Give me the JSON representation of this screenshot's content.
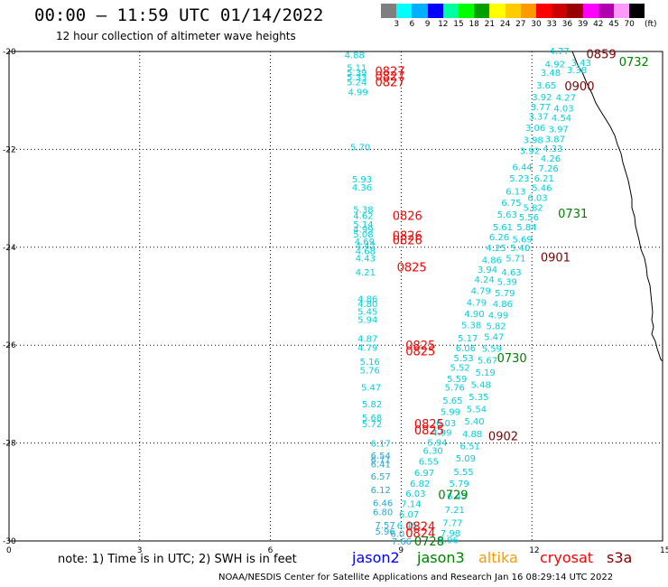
{
  "header": {
    "title": "00:00 – 11:59 UTC 01/14/2022",
    "subtitle": "12 hour collection of altimeter wave heights"
  },
  "colorbar": {
    "unit": "(ft)",
    "boxes": [
      "#7f7f7f",
      "#00ffff",
      "#00b0ff",
      "#0000ff",
      "#00ffa0",
      "#00ff00",
      "#00a000",
      "#ffff00",
      "#ffcc00",
      "#ff9900",
      "#ff0000",
      "#cc0000",
      "#990000",
      "#ff00ff",
      "#b000b0",
      "#ff99ff",
      "#000000"
    ],
    "labels": [
      "3",
      "6",
      "9",
      "12",
      "15",
      "18",
      "21",
      "24",
      "27",
      "30",
      "33",
      "36",
      "39",
      "42",
      "45",
      "70"
    ]
  },
  "axes": {
    "lat_labels": [
      "-20",
      "-22",
      "-24",
      "-26",
      "-28",
      "-30"
    ],
    "lon_labels": [
      "0",
      "3",
      "6",
      "9",
      "12",
      "15"
    ],
    "lat_range": [
      -30,
      -20
    ],
    "lon_range": [
      0,
      15
    ]
  },
  "colors": {
    "jason2": "#0000ff",
    "jason3": "#008000",
    "altika": "#ff9900",
    "cryosat": "#ff0000",
    "s3a": "#800000",
    "swh_cyan": "#00d0e0",
    "swh_blue": "#2aa8d8"
  },
  "legend": {
    "note": "note: 1) Time is in UTC; 2) SWH is in feet",
    "jason2": "jason2",
    "jason3": "jason3",
    "altika": "altika",
    "cryosat": "cryosat",
    "s3a": "s3a"
  },
  "credit": "NOAA/NESDIS Center for Satellite Applications and Research     Jan 16 08:29:14 UTC 2022",
  "tracks": {
    "west_values": [
      {
        "lat": -20.06,
        "lon": 7.7,
        "v": "4.88"
      },
      {
        "lat": -20.32,
        "lon": 7.75,
        "v": "5.11"
      },
      {
        "lat": -20.42,
        "lon": 7.75,
        "v": "5.39"
      },
      {
        "lat": -20.52,
        "lon": 7.75,
        "v": "5.33"
      },
      {
        "lat": -20.62,
        "lon": 7.75,
        "v": "5.24"
      },
      {
        "lat": -20.82,
        "lon": 7.78,
        "v": "4.99"
      },
      {
        "lat": -21.95,
        "lon": 7.83,
        "v": "5.70"
      },
      {
        "lat": -22.6,
        "lon": 7.87,
        "v": "5.93"
      },
      {
        "lat": -22.77,
        "lon": 7.87,
        "v": "4.36"
      },
      {
        "lat": -23.22,
        "lon": 7.9,
        "v": "5.38"
      },
      {
        "lat": -23.35,
        "lon": 7.9,
        "v": "4.62"
      },
      {
        "lat": -23.52,
        "lon": 7.9,
        "v": "5.14"
      },
      {
        "lat": -23.63,
        "lon": 7.9,
        "v": "4.99"
      },
      {
        "lat": -23.73,
        "lon": 7.9,
        "v": "5.08"
      },
      {
        "lat": -23.87,
        "lon": 7.93,
        "v": "4.69"
      },
      {
        "lat": -23.96,
        "lon": 7.95,
        "v": "4.42"
      },
      {
        "lat": -24.07,
        "lon": 7.95,
        "v": "4.68"
      },
      {
        "lat": -24.22,
        "lon": 7.95,
        "v": "4.43"
      },
      {
        "lat": -24.5,
        "lon": 7.95,
        "v": "4.21"
      },
      {
        "lat": -25.05,
        "lon": 8.0,
        "v": "4.86"
      },
      {
        "lat": -25.15,
        "lon": 8.0,
        "v": "4.80"
      },
      {
        "lat": -25.3,
        "lon": 8.0,
        "v": "5.45"
      },
      {
        "lat": -25.47,
        "lon": 8.0,
        "v": "5.94"
      },
      {
        "lat": -25.86,
        "lon": 8.0,
        "v": "4.87"
      },
      {
        "lat": -26.04,
        "lon": 8.0,
        "v": "4.79"
      },
      {
        "lat": -26.33,
        "lon": 8.05,
        "v": "5.16"
      },
      {
        "lat": -26.5,
        "lon": 8.05,
        "v": "5.76"
      },
      {
        "lat": -26.85,
        "lon": 8.08,
        "v": "5.47"
      },
      {
        "lat": -27.2,
        "lon": 8.1,
        "v": "5.82"
      },
      {
        "lat": -27.47,
        "lon": 8.1,
        "v": "5.68"
      },
      {
        "lat": -27.6,
        "lon": 8.1,
        "v": "5.72"
      },
      {
        "lat": -28.0,
        "lon": 8.3,
        "v": "6.17"
      }
    ],
    "blue_values": [
      {
        "lat": -28.25,
        "lon": 8.3,
        "v": "6.54"
      },
      {
        "lat": -28.33,
        "lon": 8.3,
        "v": "6.71"
      },
      {
        "lat": -28.42,
        "lon": 8.3,
        "v": "6.41"
      },
      {
        "lat": -28.67,
        "lon": 8.3,
        "v": "6.57"
      },
      {
        "lat": -28.95,
        "lon": 8.3,
        "v": "6.12"
      },
      {
        "lat": -29.22,
        "lon": 8.35,
        "v": "6.46"
      },
      {
        "lat": -29.4,
        "lon": 8.35,
        "v": "6.80"
      },
      {
        "lat": -29.67,
        "lon": 8.4,
        "v": "7.57"
      },
      {
        "lat": -29.8,
        "lon": 8.4,
        "v": "5.96"
      },
      {
        "lat": -29.84,
        "lon": 8.75,
        "v": "6.0"
      },
      {
        "lat": -30.0,
        "lon": 8.78,
        "v": "7.66"
      }
    ],
    "east_values": [
      {
        "lat": -19.98,
        "lon": 12.4,
        "v": "4.77"
      },
      {
        "lat": -20.25,
        "lon": 12.3,
        "v": "4.92"
      },
      {
        "lat": -20.42,
        "lon": 12.2,
        "v": "3.48"
      },
      {
        "lat": -20.68,
        "lon": 12.1,
        "v": "3.65"
      },
      {
        "lat": -20.92,
        "lon": 12.0,
        "v": "3.92"
      },
      {
        "lat": -21.13,
        "lon": 11.97,
        "v": "3.77"
      },
      {
        "lat": -21.32,
        "lon": 11.92,
        "v": "3.37"
      },
      {
        "lat": -21.55,
        "lon": 11.85,
        "v": "3.06"
      },
      {
        "lat": -21.8,
        "lon": 11.8,
        "v": "3.98"
      },
      {
        "lat": -22.02,
        "lon": 11.72,
        "v": "3.92"
      },
      {
        "lat": -22.35,
        "lon": 11.55,
        "v": "6.44"
      },
      {
        "lat": -22.58,
        "lon": 11.48,
        "v": "5.23"
      },
      {
        "lat": -22.85,
        "lon": 11.4,
        "v": "6.13"
      },
      {
        "lat": -23.08,
        "lon": 11.3,
        "v": "6.75"
      },
      {
        "lat": -23.32,
        "lon": 11.2,
        "v": "5.63"
      },
      {
        "lat": -23.58,
        "lon": 11.1,
        "v": "5.61"
      },
      {
        "lat": -23.78,
        "lon": 11.02,
        "v": "6.26"
      },
      {
        "lat": -24.0,
        "lon": 10.95,
        "v": "4.25"
      },
      {
        "lat": -24.25,
        "lon": 10.85,
        "v": "4.86"
      },
      {
        "lat": -24.45,
        "lon": 10.75,
        "v": "3.94"
      },
      {
        "lat": -24.65,
        "lon": 10.68,
        "v": "4.24"
      },
      {
        "lat": -24.88,
        "lon": 10.6,
        "v": "4.79"
      },
      {
        "lat": -25.12,
        "lon": 10.5,
        "v": "4.79"
      },
      {
        "lat": -25.35,
        "lon": 10.45,
        "v": "4.90"
      },
      {
        "lat": -25.58,
        "lon": 10.38,
        "v": "5.38"
      },
      {
        "lat": -25.85,
        "lon": 10.3,
        "v": "5.17"
      },
      {
        "lat": -26.05,
        "lon": 10.25,
        "v": "6.06"
      },
      {
        "lat": -26.25,
        "lon": 10.2,
        "v": "5.53"
      },
      {
        "lat": -26.45,
        "lon": 10.12,
        "v": "5.52"
      },
      {
        "lat": -26.68,
        "lon": 10.05,
        "v": "5.59"
      },
      {
        "lat": -26.85,
        "lon": 10.0,
        "v": "5.76"
      },
      {
        "lat": -27.12,
        "lon": 9.95,
        "v": "5.65"
      },
      {
        "lat": -27.35,
        "lon": 9.9,
        "v": "5.99"
      },
      {
        "lat": -27.58,
        "lon": 9.8,
        "v": "6.03"
      },
      {
        "lat": -27.78,
        "lon": 9.7,
        "v": "4.99"
      },
      {
        "lat": -27.98,
        "lon": 9.6,
        "v": "5.94"
      },
      {
        "lat": -28.15,
        "lon": 9.5,
        "v": "6.30"
      },
      {
        "lat": -28.37,
        "lon": 9.4,
        "v": "6.55"
      },
      {
        "lat": -28.6,
        "lon": 9.3,
        "v": "6.97"
      },
      {
        "lat": -28.82,
        "lon": 9.2,
        "v": "6.82"
      },
      {
        "lat": -29.02,
        "lon": 9.1,
        "v": "6.03"
      },
      {
        "lat": -29.23,
        "lon": 9.0,
        "v": "7.14"
      },
      {
        "lat": -29.45,
        "lon": 8.95,
        "v": "6.07"
      },
      {
        "lat": -29.68,
        "lon": 8.9,
        "v": "6.45"
      }
    ],
    "east2_values": [
      {
        "lat": -20.22,
        "lon": 12.9,
        "v": "3.43"
      },
      {
        "lat": -20.37,
        "lon": 12.8,
        "v": "3.38"
      },
      {
        "lat": -20.93,
        "lon": 12.55,
        "v": "4.27"
      },
      {
        "lat": -21.15,
        "lon": 12.5,
        "v": "4.03"
      },
      {
        "lat": -21.35,
        "lon": 12.45,
        "v": "4.54"
      },
      {
        "lat": -21.58,
        "lon": 12.38,
        "v": "3.97"
      },
      {
        "lat": -21.78,
        "lon": 12.3,
        "v": "3.87"
      },
      {
        "lat": -21.97,
        "lon": 12.25,
        "v": "4.33"
      },
      {
        "lat": -22.18,
        "lon": 12.2,
        "v": "4.26"
      },
      {
        "lat": -22.38,
        "lon": 12.15,
        "v": "7.26"
      },
      {
        "lat": -22.58,
        "lon": 12.05,
        "v": "6.21"
      },
      {
        "lat": -22.78,
        "lon": 12.0,
        "v": "5.46"
      },
      {
        "lat": -22.98,
        "lon": 11.9,
        "v": "6.03"
      },
      {
        "lat": -23.18,
        "lon": 11.8,
        "v": "5.82"
      },
      {
        "lat": -23.38,
        "lon": 11.7,
        "v": "5.56"
      },
      {
        "lat": -23.58,
        "lon": 11.65,
        "v": "5.84"
      },
      {
        "lat": -23.83,
        "lon": 11.55,
        "v": "5.69"
      },
      {
        "lat": -24.0,
        "lon": 11.5,
        "v": "5.40"
      },
      {
        "lat": -24.22,
        "lon": 11.4,
        "v": "5.71"
      },
      {
        "lat": -24.5,
        "lon": 11.3,
        "v": "4.63"
      },
      {
        "lat": -24.7,
        "lon": 11.2,
        "v": "5.39"
      },
      {
        "lat": -24.93,
        "lon": 11.15,
        "v": "5.79"
      },
      {
        "lat": -25.15,
        "lon": 11.1,
        "v": "4.86"
      },
      {
        "lat": -25.38,
        "lon": 11.0,
        "v": "4.99"
      },
      {
        "lat": -25.6,
        "lon": 10.95,
        "v": "5.82"
      },
      {
        "lat": -25.82,
        "lon": 10.9,
        "v": "5.47"
      },
      {
        "lat": -26.06,
        "lon": 10.85,
        "v": "5.59"
      },
      {
        "lat": -26.3,
        "lon": 10.75,
        "v": "5.67"
      },
      {
        "lat": -26.55,
        "lon": 10.7,
        "v": "5.19"
      },
      {
        "lat": -26.8,
        "lon": 10.6,
        "v": "5.48"
      },
      {
        "lat": -27.05,
        "lon": 10.55,
        "v": "5.35"
      },
      {
        "lat": -27.3,
        "lon": 10.5,
        "v": "5.54"
      },
      {
        "lat": -27.55,
        "lon": 10.45,
        "v": "5.40"
      },
      {
        "lat": -27.8,
        "lon": 10.4,
        "v": "4.88"
      },
      {
        "lat": -28.05,
        "lon": 10.35,
        "v": "6.51"
      },
      {
        "lat": -28.3,
        "lon": 10.25,
        "v": "5.09"
      },
      {
        "lat": -28.58,
        "lon": 10.2,
        "v": "5.55"
      },
      {
        "lat": -28.82,
        "lon": 10.1,
        "v": "5.79"
      },
      {
        "lat": -29.08,
        "lon": 10.05,
        "v": "6.45"
      },
      {
        "lat": -29.35,
        "lon": 10.0,
        "v": "7.21"
      },
      {
        "lat": -29.62,
        "lon": 9.95,
        "v": "7.77"
      },
      {
        "lat": -29.83,
        "lon": 9.9,
        "v": "7.98"
      },
      {
        "lat": -29.97,
        "lon": 9.85,
        "v": "6.96"
      }
    ],
    "time_labels": [
      {
        "lat": -20.4,
        "lon": 8.4,
        "t": "0827",
        "sat": "cryosat"
      },
      {
        "lat": -20.5,
        "lon": 8.4,
        "t": "0827",
        "sat": "cryosat"
      },
      {
        "lat": -20.62,
        "lon": 8.4,
        "t": "0827",
        "sat": "cryosat"
      },
      {
        "lat": -23.35,
        "lon": 8.8,
        "t": "0826",
        "sat": "cryosat"
      },
      {
        "lat": -23.75,
        "lon": 8.8,
        "t": "0826",
        "sat": "cryosat"
      },
      {
        "lat": -23.85,
        "lon": 8.8,
        "t": "0826",
        "sat": "cryosat"
      },
      {
        "lat": -24.4,
        "lon": 8.9,
        "t": "0825",
        "sat": "cryosat"
      },
      {
        "lat": -26.0,
        "lon": 9.1,
        "t": "0825",
        "sat": "cryosat"
      },
      {
        "lat": -26.12,
        "lon": 9.1,
        "t": "0825",
        "sat": "cryosat"
      },
      {
        "lat": -27.6,
        "lon": 9.3,
        "t": "0825",
        "sat": "cryosat"
      },
      {
        "lat": -27.73,
        "lon": 9.3,
        "t": "0825",
        "sat": "cryosat"
      },
      {
        "lat": -29.7,
        "lon": 9.1,
        "t": "0824",
        "sat": "cryosat"
      },
      {
        "lat": -29.83,
        "lon": 9.1,
        "t": "0824",
        "sat": "cryosat"
      },
      {
        "lat": -20.05,
        "lon": 13.25,
        "t": "0859",
        "sat": "s3a"
      },
      {
        "lat": -20.7,
        "lon": 12.75,
        "t": "0900",
        "sat": "s3a"
      },
      {
        "lat": -24.2,
        "lon": 12.2,
        "t": "0901",
        "sat": "s3a"
      },
      {
        "lat": -27.85,
        "lon": 11.0,
        "t": "0902",
        "sat": "s3a"
      },
      {
        "lat": -20.2,
        "lon": 14.0,
        "t": "0732",
        "sat": "jason3"
      },
      {
        "lat": -23.3,
        "lon": 12.6,
        "t": "0731",
        "sat": "jason3"
      },
      {
        "lat": -26.25,
        "lon": 11.2,
        "t": "0730",
        "sat": "jason3"
      },
      {
        "lat": -29.05,
        "lon": 9.85,
        "t": "0729",
        "sat": "jason3"
      },
      {
        "lat": -30.0,
        "lon": 9.3,
        "t": "0728",
        "sat": "jason3"
      }
    ]
  }
}
